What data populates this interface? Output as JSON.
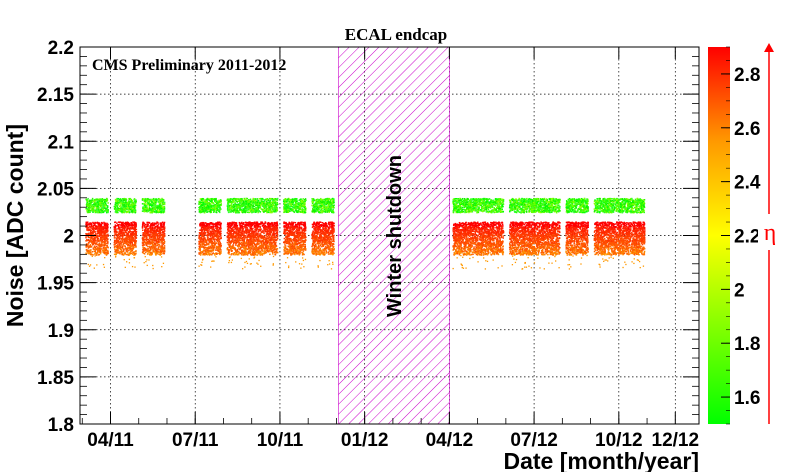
{
  "chart_data": {
    "type": "scatter",
    "title": "ECAL endcap",
    "annotation": "CMS Preliminary 2011-2012",
    "shutdown_label": "Winter shutdown",
    "xlabel": "Date [month/year]",
    "ylabel": "Noise [ADC count]",
    "colorbar_label": "η",
    "x_ticks": [
      "04/11",
      "07/11",
      "10/11",
      "01/12",
      "04/12",
      "07/12",
      "10/12",
      "12/12"
    ],
    "y_ticks": [
      "1.8",
      "1.85",
      "1.9",
      "1.95",
      "2",
      "2.05",
      "2.1",
      "2.15",
      "2.2"
    ],
    "ylim": [
      1.8,
      2.2
    ],
    "colorbar_ticks": [
      "1.6",
      "1.8",
      "2",
      "2.2",
      "2.4",
      "2.6",
      "2.8"
    ],
    "colorbar_range": [
      1.5,
      2.9
    ],
    "colors": {
      "low_eta": "#00ff00",
      "mid_eta": "#ffff00",
      "high_eta": "#ff0000",
      "shutdown_hatch": "#cc00cc",
      "arrow": "#ff0000"
    },
    "grid": true,
    "shutdown": {
      "start": "12/11",
      "end": "04/12"
    },
    "series": [
      {
        "eta": "high",
        "x_range": [
          "03/11",
          "11/12"
        ],
        "noise": 2.0,
        "spread": [
          1.98,
          2.015
        ]
      },
      {
        "eta": "low",
        "x_range": [
          "03/11",
          "11/12"
        ],
        "noise": 2.033,
        "spread": [
          2.025,
          2.04
        ]
      }
    ],
    "run_periods": [
      {
        "start": "03/11",
        "end": "04/11"
      },
      {
        "start": "04/11",
        "end": "05/11"
      },
      {
        "start": "05/11",
        "end": "06/11"
      },
      {
        "start": "07/11",
        "end": "08/11"
      },
      {
        "start": "08/11",
        "end": "10/11"
      },
      {
        "start": "10/11",
        "end": "11/11"
      },
      {
        "start": "11/11",
        "end": "12/11"
      },
      {
        "start": "04/12",
        "end": "06/12"
      },
      {
        "start": "06/12",
        "end": "08/12"
      },
      {
        "start": "08/12",
        "end": "09/12"
      },
      {
        "start": "09/12",
        "end": "11/12"
      }
    ]
  }
}
